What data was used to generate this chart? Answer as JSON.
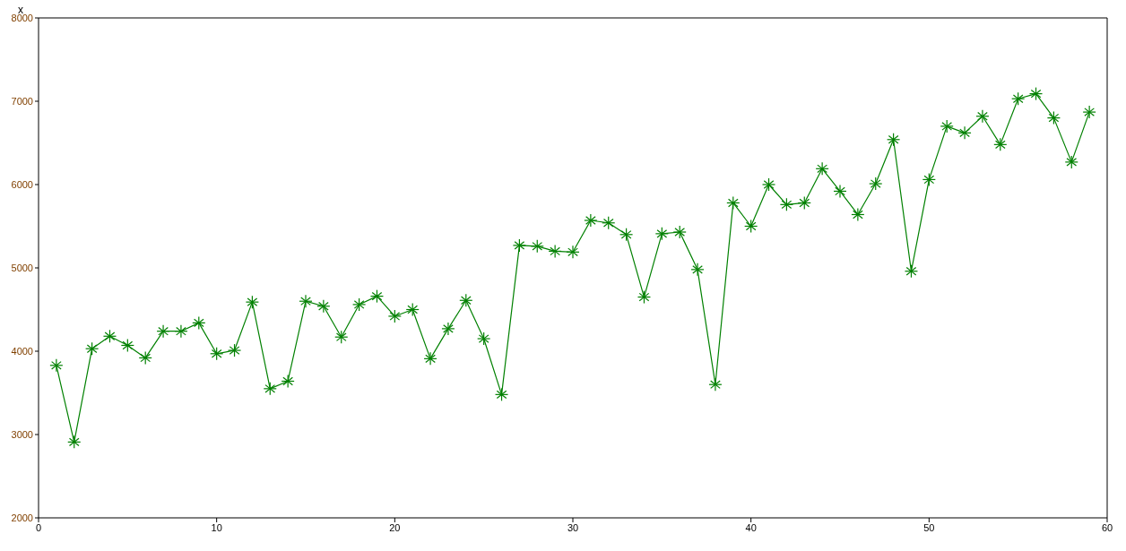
{
  "chart_data": {
    "type": "line",
    "ylabel": "x",
    "marker": "cross",
    "line_style": "solid",
    "x": [
      1,
      2,
      3,
      4,
      5,
      6,
      7,
      8,
      9,
      10,
      11,
      12,
      13,
      14,
      15,
      16,
      17,
      18,
      19,
      20,
      21,
      22,
      23,
      24,
      25,
      26,
      27,
      28,
      29,
      30,
      31,
      32,
      33,
      34,
      35,
      36,
      37,
      38,
      39,
      40,
      41,
      42,
      43,
      44,
      45,
      46,
      47,
      48,
      49,
      50,
      51,
      52,
      53,
      54,
      55,
      56,
      57,
      58,
      59
    ],
    "series": [
      {
        "color": "#008000",
        "values": [
          3830,
          2910,
          4030,
          4180,
          4070,
          3920,
          4240,
          4240,
          4340,
          3970,
          4010,
          4590,
          3550,
          3640,
          4600,
          4540,
          4170,
          4560,
          4660,
          4420,
          4500,
          3910,
          4270,
          4610,
          4150,
          3480,
          5270,
          5260,
          5200,
          5190,
          5570,
          5540,
          5400,
          4650,
          5410,
          5430,
          4980,
          3600,
          5780,
          5500,
          6000,
          5760,
          5780,
          6190,
          5920,
          5640,
          6010,
          6540,
          4960,
          6060,
          6700,
          6620,
          6820,
          6480,
          7030,
          7090,
          6800,
          6270,
          6870
        ]
      }
    ],
    "xlim": [
      0,
      60
    ],
    "xticks": [
      0,
      10,
      20,
      30,
      40,
      50,
      60
    ],
    "ylim": [
      2000,
      8000
    ],
    "yticks": [
      2000,
      3000,
      4000,
      5000,
      6000,
      7000,
      8000
    ]
  }
}
